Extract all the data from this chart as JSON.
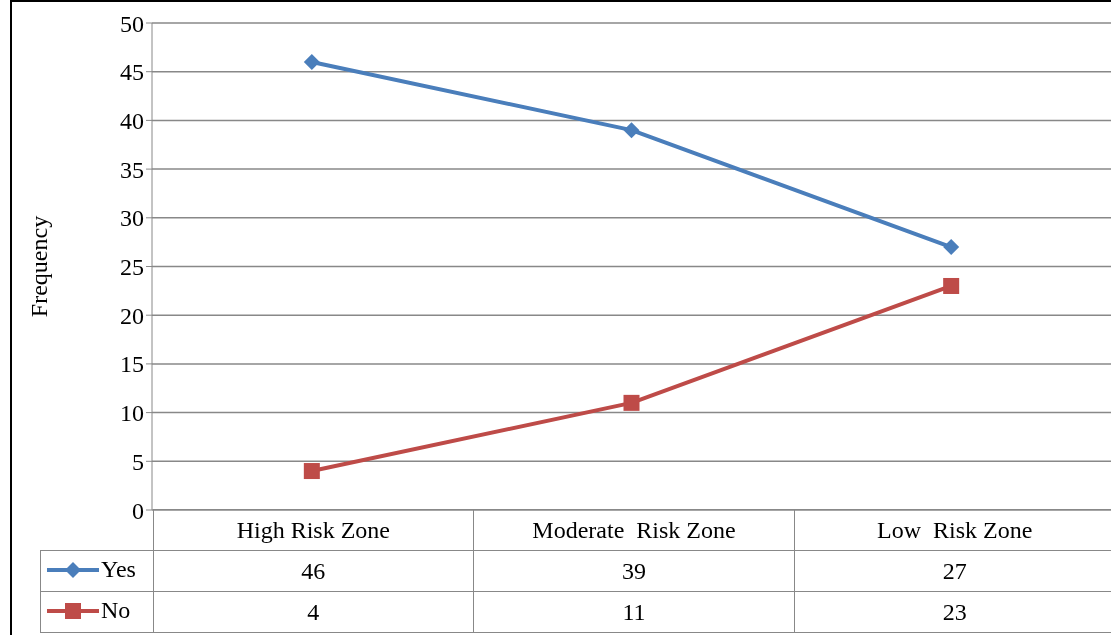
{
  "chart_data": {
    "type": "line",
    "ylabel": "Frequency",
    "categories": [
      "High Risk Zone",
      "Moderate  Risk Zone",
      "Low  Risk Zone"
    ],
    "series": [
      {
        "name": "Yes",
        "color": "#4a7ebb",
        "marker": "diamond",
        "values": [
          46,
          39,
          27
        ]
      },
      {
        "name": "No",
        "color": "#be4b48",
        "marker": "square",
        "values": [
          4,
          11,
          23
        ]
      }
    ],
    "ylim": [
      0,
      50
    ],
    "yticks": [
      0,
      5,
      10,
      15,
      20,
      25,
      30,
      35,
      40,
      45,
      50
    ],
    "grid": "y",
    "legend": "bottom",
    "data_labels": true,
    "line_style": "solid"
  }
}
